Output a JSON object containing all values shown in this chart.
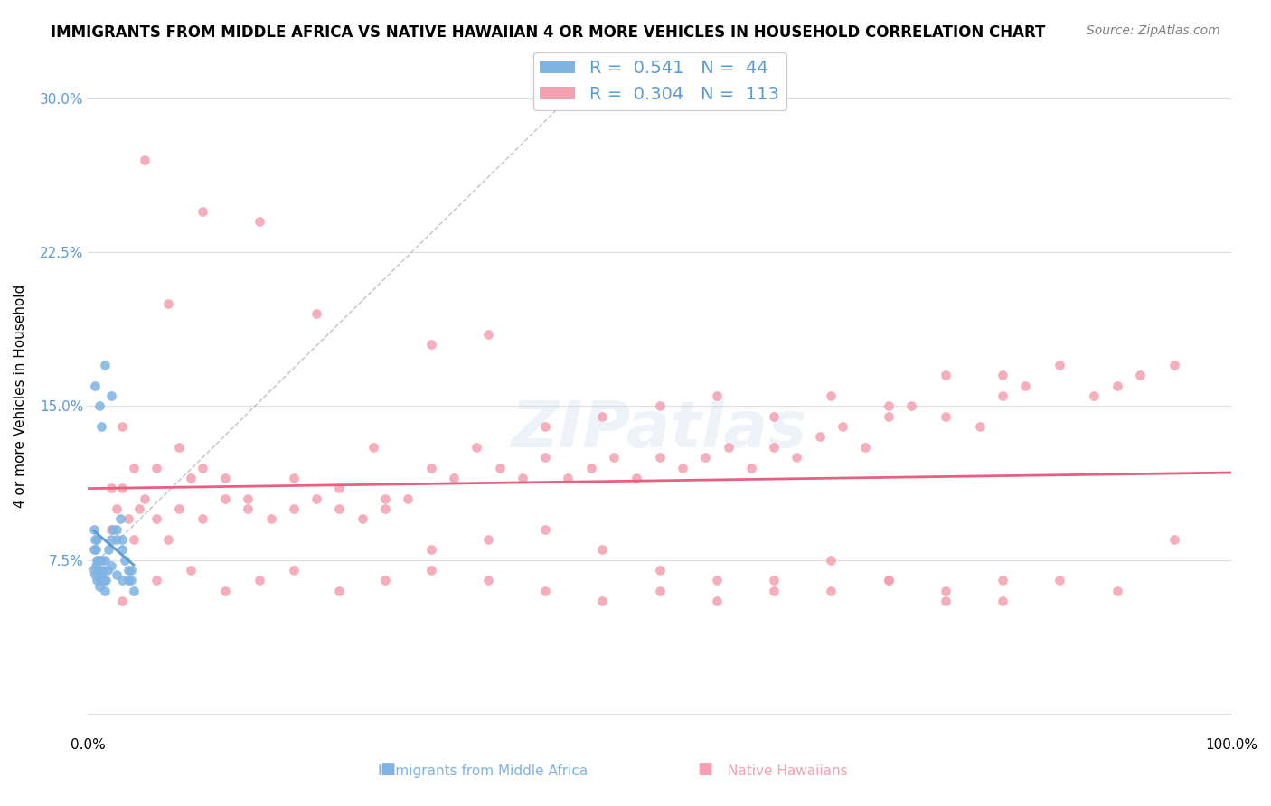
{
  "title": "IMMIGRANTS FROM MIDDLE AFRICA VS NATIVE HAWAIIAN 4 OR MORE VEHICLES IN HOUSEHOLD CORRELATION CHART",
  "source": "Source: ZipAtlas.com",
  "xlabel": "",
  "ylabel": "4 or more Vehicles in Household",
  "xlim": [
    0.0,
    1.0
  ],
  "ylim": [
    -0.01,
    0.32
  ],
  "xticks": [
    0.0,
    0.1,
    0.2,
    0.3,
    0.4,
    0.5,
    0.6,
    0.7,
    0.8,
    0.9,
    1.0
  ],
  "xticklabels": [
    "0.0%",
    "",
    "",
    "",
    "",
    "",
    "",
    "",
    "",
    "",
    "100.0%"
  ],
  "yticks": [
    0.0,
    0.075,
    0.15,
    0.225,
    0.3
  ],
  "yticklabels": [
    "",
    "7.5%",
    "15.0%",
    "22.5%",
    "30.0%"
  ],
  "blue_R": 0.541,
  "blue_N": 44,
  "pink_R": 0.304,
  "pink_N": 113,
  "blue_color": "#7EB3E3",
  "pink_color": "#F4A0B0",
  "blue_line_color": "#5B9BD5",
  "pink_line_color": "#E86080",
  "dashed_line_color": "#AAAAAA",
  "watermark": "ZIPatlas",
  "background_color": "#FFFFFF",
  "grid_color": "#DDDDDD",
  "blue_scatter_x": [
    0.005,
    0.006,
    0.007,
    0.008,
    0.009,
    0.01,
    0.011,
    0.012,
    0.013,
    0.014,
    0.015,
    0.016,
    0.017,
    0.018,
    0.02,
    0.022,
    0.025,
    0.028,
    0.03,
    0.032,
    0.035,
    0.038,
    0.04,
    0.005,
    0.006,
    0.007,
    0.008,
    0.01,
    0.012,
    0.015,
    0.02,
    0.025,
    0.03,
    0.035,
    0.005,
    0.008,
    0.01,
    0.012,
    0.015,
    0.02,
    0.025,
    0.03,
    0.038,
    0.006
  ],
  "blue_scatter_y": [
    0.09,
    0.085,
    0.08,
    0.085,
    0.075,
    0.07,
    0.065,
    0.075,
    0.07,
    0.065,
    0.06,
    0.065,
    0.07,
    0.08,
    0.085,
    0.09,
    0.085,
    0.095,
    0.08,
    0.075,
    0.065,
    0.07,
    0.06,
    0.07,
    0.068,
    0.072,
    0.065,
    0.062,
    0.068,
    0.075,
    0.072,
    0.068,
    0.065,
    0.07,
    0.08,
    0.075,
    0.15,
    0.14,
    0.17,
    0.155,
    0.09,
    0.085,
    0.065,
    0.16
  ],
  "pink_scatter_x": [
    0.02,
    0.025,
    0.03,
    0.035,
    0.04,
    0.045,
    0.05,
    0.06,
    0.07,
    0.08,
    0.09,
    0.1,
    0.12,
    0.14,
    0.16,
    0.18,
    0.2,
    0.22,
    0.24,
    0.26,
    0.28,
    0.3,
    0.32,
    0.34,
    0.36,
    0.38,
    0.4,
    0.42,
    0.44,
    0.46,
    0.48,
    0.5,
    0.52,
    0.54,
    0.56,
    0.58,
    0.6,
    0.62,
    0.64,
    0.66,
    0.68,
    0.7,
    0.72,
    0.75,
    0.78,
    0.8,
    0.82,
    0.85,
    0.88,
    0.9,
    0.92,
    0.95,
    0.03,
    0.05,
    0.07,
    0.1,
    0.15,
    0.2,
    0.25,
    0.3,
    0.35,
    0.4,
    0.45,
    0.5,
    0.55,
    0.6,
    0.65,
    0.7,
    0.75,
    0.8,
    0.02,
    0.04,
    0.06,
    0.08,
    0.1,
    0.12,
    0.14,
    0.18,
    0.22,
    0.26,
    0.3,
    0.35,
    0.4,
    0.45,
    0.5,
    0.55,
    0.6,
    0.65,
    0.7,
    0.75,
    0.8,
    0.85,
    0.9,
    0.95,
    0.03,
    0.06,
    0.09,
    0.12,
    0.15,
    0.18,
    0.22,
    0.26,
    0.3,
    0.35,
    0.4,
    0.45,
    0.5,
    0.55,
    0.6,
    0.65,
    0.7,
    0.75,
    0.8
  ],
  "pink_scatter_y": [
    0.09,
    0.1,
    0.11,
    0.095,
    0.085,
    0.1,
    0.105,
    0.095,
    0.085,
    0.1,
    0.115,
    0.095,
    0.105,
    0.1,
    0.095,
    0.1,
    0.105,
    0.1,
    0.095,
    0.1,
    0.105,
    0.12,
    0.115,
    0.13,
    0.12,
    0.115,
    0.125,
    0.115,
    0.12,
    0.125,
    0.115,
    0.125,
    0.12,
    0.125,
    0.13,
    0.12,
    0.13,
    0.125,
    0.135,
    0.14,
    0.13,
    0.145,
    0.15,
    0.145,
    0.14,
    0.155,
    0.16,
    0.17,
    0.155,
    0.16,
    0.165,
    0.17,
    0.14,
    0.27,
    0.2,
    0.245,
    0.24,
    0.195,
    0.13,
    0.18,
    0.185,
    0.14,
    0.145,
    0.15,
    0.155,
    0.145,
    0.155,
    0.15,
    0.165,
    0.165,
    0.11,
    0.12,
    0.12,
    0.13,
    0.12,
    0.115,
    0.105,
    0.115,
    0.11,
    0.105,
    0.08,
    0.085,
    0.09,
    0.08,
    0.07,
    0.065,
    0.065,
    0.06,
    0.065,
    0.055,
    0.055,
    0.065,
    0.06,
    0.085,
    0.055,
    0.065,
    0.07,
    0.06,
    0.065,
    0.07,
    0.06,
    0.065,
    0.07,
    0.065,
    0.06,
    0.055,
    0.06,
    0.055,
    0.06,
    0.075,
    0.065,
    0.06,
    0.065
  ]
}
